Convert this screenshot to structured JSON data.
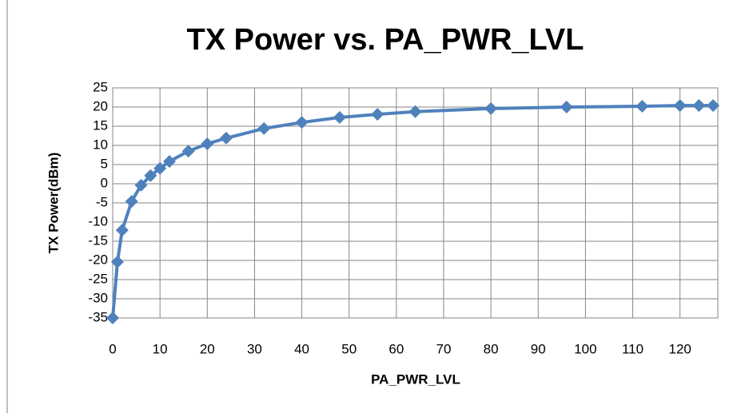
{
  "chart_data": {
    "type": "line",
    "title": "TX Power vs. PA_PWR_LVL",
    "x_label": "PA_PWR_LVL",
    "y_label": "TX Power(dBm)",
    "x": [
      0,
      1,
      2,
      4,
      6,
      8,
      10,
      12,
      16,
      20,
      24,
      32,
      40,
      48,
      56,
      64,
      80,
      96,
      112,
      120,
      124,
      127
    ],
    "series": [
      {
        "name": "TX Power",
        "color": "#4f81bd",
        "values": [
          -35,
          -20.4,
          -12.1,
          -4.6,
          -0.4,
          2.1,
          4,
          5.8,
          8.5,
          10.4,
          11.9,
          14.4,
          16,
          17.3,
          18.1,
          18.8,
          19.6,
          20,
          20.2,
          20.4,
          20.4,
          20.4
        ]
      }
    ],
    "xlim": [
      0,
      128
    ],
    "xticks": [
      0,
      10,
      20,
      30,
      40,
      50,
      60,
      70,
      80,
      90,
      100,
      110,
      120
    ],
    "ylim": [
      -35,
      25
    ],
    "yticks": [
      -35,
      -30,
      -25,
      -20,
      -15,
      -10,
      -5,
      0,
      5,
      10,
      15,
      20,
      25
    ],
    "grid": true
  }
}
